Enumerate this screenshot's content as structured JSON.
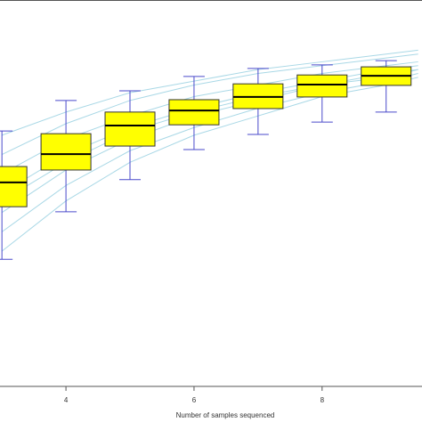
{
  "chart_data": {
    "type": "box",
    "x_label": "Number of samples sequenced",
    "xlim": [
      2.97,
      9.56
    ],
    "xticks": [
      4,
      6,
      8
    ],
    "ylim": [
      0,
      100
    ],
    "box_color": "#ffff00",
    "whisker_color": "#4a4acb",
    "median_color": "#000000",
    "boxes": {
      "x": [
        3,
        4,
        5,
        6,
        7,
        8,
        9
      ],
      "whislo": [
        32.9,
        45.2,
        53.5,
        61.3,
        65.2,
        68.4,
        71.0
      ],
      "q1": [
        46.5,
        56.0,
        62.2,
        67.7,
        71.9,
        74.9,
        77.9
      ],
      "med": [
        52.8,
        60.1,
        67.5,
        71.4,
        74.9,
        78.1,
        80.4
      ],
      "q3": [
        56.9,
        65.4,
        71.0,
        74.2,
        78.3,
        80.6,
        82.7
      ],
      "whishi": [
        66.1,
        74.0,
        76.5,
        80.2,
        82.3,
        83.2,
        84.3
      ]
    },
    "curves": {
      "color": "#a9d8e6",
      "x": [
        3,
        4,
        5,
        6,
        7,
        8,
        9,
        9.5
      ],
      "lines": [
        [
          60,
          68,
          74,
          78,
          81,
          83,
          85,
          86
        ],
        [
          55,
          64,
          70,
          75,
          78,
          81,
          83,
          84
        ],
        [
          50,
          60,
          67,
          72,
          76,
          79,
          82,
          83
        ],
        [
          45,
          56,
          64,
          70,
          74,
          78,
          81,
          82
        ],
        [
          40,
          52,
          61,
          67,
          72,
          76,
          79,
          81
        ],
        [
          35,
          48,
          58,
          65,
          70,
          75,
          78,
          80
        ],
        [
          65,
          71,
          76,
          79,
          82,
          84,
          86,
          87
        ],
        [
          48,
          58,
          66,
          71,
          75,
          78,
          80,
          82
        ]
      ]
    }
  }
}
